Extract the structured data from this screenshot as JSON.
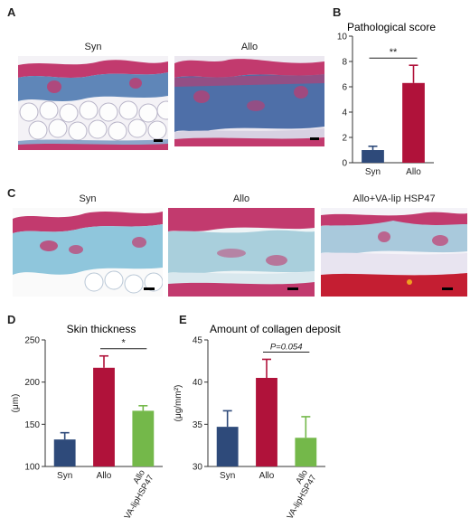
{
  "panels": {
    "A": {
      "letter": "A",
      "labels": [
        "Syn",
        "Allo"
      ]
    },
    "B": {
      "letter": "B"
    },
    "C": {
      "letter": "C",
      "labels": [
        "Syn",
        "Allo",
        "Allo+VA-lip HSP47"
      ]
    },
    "D": {
      "letter": "D"
    },
    "E": {
      "letter": "E"
    }
  },
  "colors": {
    "syn": "#2e4a7a",
    "allo": "#b0123a",
    "va_lip": "#74b84a",
    "tissue_pink": "#c23a6e",
    "tissue_blue": "#5f86b8",
    "tissue_light": "#8fc6dc"
  },
  "chart_data": [
    {
      "id": "B",
      "type": "bar",
      "title": "Pathological score",
      "categories": [
        "Syn",
        "Allo"
      ],
      "values": [
        1.0,
        6.3
      ],
      "errors": [
        0.3,
        1.4
      ],
      "ylim": [
        0,
        10
      ],
      "yticks": [
        0,
        2,
        4,
        6,
        8,
        10
      ],
      "ylabel": "",
      "significance": {
        "from": 0,
        "to": 1,
        "label": "**"
      },
      "bar_colors": [
        "#2e4a7a",
        "#b0123a"
      ]
    },
    {
      "id": "D",
      "type": "bar",
      "title": "Skin thickness",
      "categories": [
        "Syn",
        "Allo",
        "Allo\n+VA-lipHSP47"
      ],
      "values": [
        132,
        217,
        166
      ],
      "errors": [
        8,
        14,
        6
      ],
      "ylim": [
        100,
        250
      ],
      "yticks": [
        100,
        150,
        200,
        250
      ],
      "ylabel": "(μm)",
      "significance": {
        "from": 1,
        "to": 2,
        "label": "*"
      },
      "bar_colors": [
        "#2e4a7a",
        "#b0123a",
        "#74b84a"
      ]
    },
    {
      "id": "E",
      "type": "bar",
      "title": "Amount of collagen deposit",
      "categories": [
        "Syn",
        "Allo",
        "Allo\n+VA-lipHSP47"
      ],
      "values": [
        34.7,
        40.5,
        33.4
      ],
      "errors": [
        1.9,
        2.2,
        2.5
      ],
      "ylim": [
        30,
        45
      ],
      "yticks": [
        30,
        35,
        40,
        45
      ],
      "ylabel": "(μg/mm²)",
      "significance": {
        "from": 1,
        "to": 2,
        "label": "P=0.054"
      },
      "bar_colors": [
        "#2e4a7a",
        "#b0123a",
        "#74b84a"
      ]
    }
  ]
}
